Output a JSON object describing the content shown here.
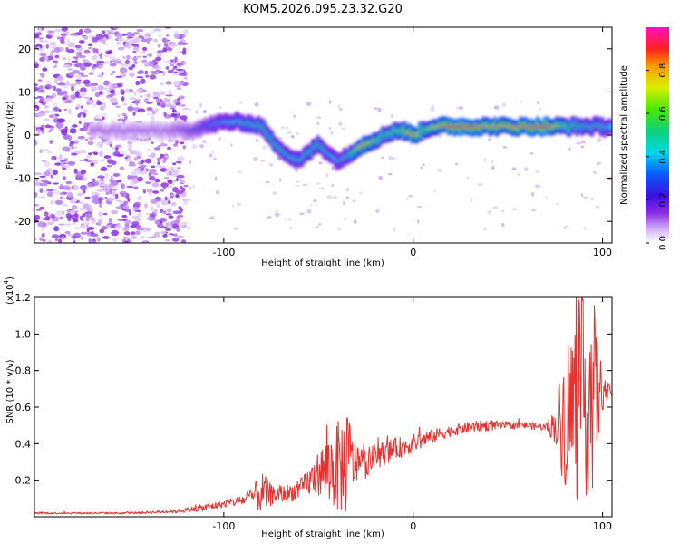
{
  "title": "KOM5.2026.095.23.32.G20",
  "colors": {
    "snr_line": "#e8302c",
    "spectrogram_base": "#7a2be0",
    "frame": "#000000"
  },
  "chart_data": [
    {
      "type": "heatmap",
      "panel": "spectrogram",
      "xlabel": "Height of straight line (km)",
      "ylabel": "Frequency (Hz)",
      "xlim": [
        -200,
        105
      ],
      "ylim": [
        -25,
        25
      ],
      "xticks": [
        -100,
        0,
        100
      ],
      "yticks": [
        -20,
        -10,
        0,
        10,
        20
      ],
      "xticklabels": [
        "-100",
        "0",
        "100"
      ],
      "yticklabels": [
        "-20",
        "-10",
        "0",
        "10",
        "20"
      ],
      "colorbar": {
        "label": "Normalized spectral amplitude",
        "range": [
          0,
          1
        ],
        "ticks": [
          0.0,
          0.2,
          0.4,
          0.6,
          0.8
        ],
        "ticklabels": [
          "0.0",
          "0.2",
          "0.4",
          "0.6",
          "0.8"
        ]
      },
      "ridge": {
        "x": [
          -130,
          -120,
          -110,
          -100,
          -90,
          -80,
          -75,
          -70,
          -65,
          -60,
          -55,
          -50,
          -45,
          -40,
          -35,
          -30,
          -25,
          -20,
          -15,
          -10,
          -5,
          0,
          5,
          10,
          20,
          30,
          40,
          50,
          60,
          70,
          80,
          90,
          100,
          105
        ],
        "freq": [
          1,
          1,
          2,
          3,
          3,
          2,
          -1,
          -3,
          -5,
          -6,
          -4,
          -2,
          -4,
          -6,
          -5,
          -3,
          -2,
          -1,
          0,
          1,
          1,
          0,
          1,
          2,
          2,
          2,
          2,
          2,
          2,
          2,
          2,
          2,
          2,
          2
        ],
        "amplitude": [
          0.15,
          0.2,
          0.3,
          0.4,
          0.45,
          0.5,
          0.5,
          0.5,
          0.45,
          0.45,
          0.5,
          0.5,
          0.45,
          0.4,
          0.45,
          0.7,
          0.8,
          0.65,
          0.55,
          0.6,
          0.65,
          0.85,
          0.6,
          0.7,
          0.9,
          0.9,
          0.75,
          0.8,
          0.85,
          0.9,
          0.6,
          0.5,
          0.45,
          0.45
        ]
      },
      "noise_region_x": [
        -200,
        -120
      ]
    },
    {
      "type": "line",
      "panel": "snr",
      "xlabel": "Height of straight line (km)",
      "ylabel": "SNR (10 * v/v)",
      "y_multiplier": "(x10",
      "y_multiplier_exp": "4",
      "y_multiplier_close": ")",
      "xlim": [
        -200,
        105
      ],
      "ylim": [
        0,
        1.2
      ],
      "xticks": [
        -100,
        0,
        100
      ],
      "yticks": [
        0.2,
        0.4,
        0.6,
        0.8,
        1.0,
        1.2
      ],
      "xticklabels": [
        "-100",
        "0",
        "100"
      ],
      "yticklabels": [
        "0.2",
        "0.4",
        "0.6",
        "0.8",
        "1.0",
        "1.2"
      ],
      "series": [
        {
          "name": "SNR",
          "x": [
            -200,
            -150,
            -125,
            -110,
            -100,
            -90,
            -85,
            -80,
            -75,
            -70,
            -65,
            -60,
            -55,
            -50,
            -45,
            -40,
            -35,
            -30,
            -25,
            -20,
            -10,
            0,
            10,
            20,
            30,
            40,
            50,
            60,
            70,
            75,
            80,
            85,
            90,
            95,
            100,
            105
          ],
          "trend": [
            0.02,
            0.02,
            0.03,
            0.05,
            0.07,
            0.09,
            0.11,
            0.13,
            0.12,
            0.12,
            0.13,
            0.15,
            0.19,
            0.24,
            0.26,
            0.27,
            0.3,
            0.3,
            0.29,
            0.33,
            0.37,
            0.4,
            0.44,
            0.47,
            0.49,
            0.5,
            0.5,
            0.5,
            0.49,
            0.5,
            0.55,
            0.6,
            0.65,
            0.68,
            0.68,
            0.68
          ],
          "spread": [
            0.005,
            0.005,
            0.01,
            0.02,
            0.02,
            0.03,
            0.05,
            0.12,
            0.06,
            0.05,
            0.05,
            0.05,
            0.08,
            0.12,
            0.2,
            0.25,
            0.3,
            0.12,
            0.08,
            0.07,
            0.06,
            0.05,
            0.04,
            0.03,
            0.03,
            0.03,
            0.02,
            0.02,
            0.02,
            0.1,
            0.4,
            0.55,
            0.55,
            0.55,
            0.1,
            0.02
          ]
        }
      ]
    }
  ]
}
